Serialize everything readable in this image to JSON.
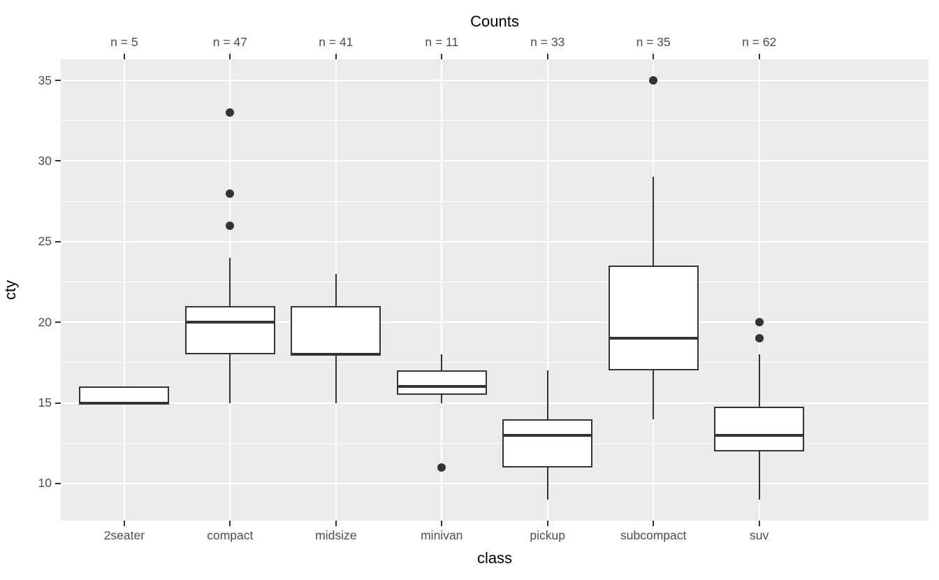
{
  "chart_data": {
    "type": "boxplot",
    "title_top": "Counts",
    "xlabel": "class",
    "ylabel": "cty",
    "categories": [
      "2seater",
      "compact",
      "midsize",
      "minivan",
      "pickup",
      "subcompact",
      "suv"
    ],
    "counts_labels": [
      "n = 5",
      "n = 47",
      "n = 41",
      "n = 11",
      "n = 33",
      "n = 35",
      "n = 62"
    ],
    "counts": [
      5,
      47,
      41,
      11,
      33,
      35,
      62
    ],
    "y_ticks": [
      10,
      15,
      20,
      25,
      30,
      35
    ],
    "y_minor_ticks": [
      12.5,
      17.5,
      22.5,
      27.5,
      32.5
    ],
    "ylim": [
      7.7,
      36.3
    ],
    "grid": "on",
    "boxes": [
      {
        "class": "2seater",
        "n": 5,
        "lower_whisker": 15,
        "q1": 15,
        "median": 15,
        "q3": 16,
        "upper_whisker": 16,
        "outliers": []
      },
      {
        "class": "compact",
        "n": 47,
        "lower_whisker": 15,
        "q1": 18,
        "median": 20,
        "q3": 21,
        "upper_whisker": 24,
        "outliers": [
          26,
          28,
          33
        ]
      },
      {
        "class": "midsize",
        "n": 41,
        "lower_whisker": 15,
        "q1": 18,
        "median": 18,
        "q3": 21,
        "upper_whisker": 23,
        "outliers": []
      },
      {
        "class": "minivan",
        "n": 11,
        "lower_whisker": 15,
        "q1": 15.5,
        "median": 16,
        "q3": 17,
        "upper_whisker": 18,
        "outliers": [
          11
        ]
      },
      {
        "class": "pickup",
        "n": 33,
        "lower_whisker": 9,
        "q1": 11,
        "median": 13,
        "q3": 14,
        "upper_whisker": 17,
        "outliers": []
      },
      {
        "class": "subcompact",
        "n": 35,
        "lower_whisker": 14,
        "q1": 17,
        "median": 19,
        "q3": 23.5,
        "upper_whisker": 29,
        "outliers": [
          35
        ]
      },
      {
        "class": "suv",
        "n": 62,
        "lower_whisker": 9,
        "q1": 12,
        "median": 13,
        "q3": 14.75,
        "upper_whisker": 18,
        "outliers": [
          19,
          20
        ]
      }
    ],
    "colors": {
      "panel_bg": "#EBEBEB",
      "grid_major": "#FFFFFF",
      "grid_minor": "#FFFFFF",
      "box_stroke": "#333333",
      "box_fill": "#FFFFFF",
      "tick_mark": "#333333",
      "tick_label": "#4D4D4D",
      "axis_title": "#000000"
    }
  }
}
